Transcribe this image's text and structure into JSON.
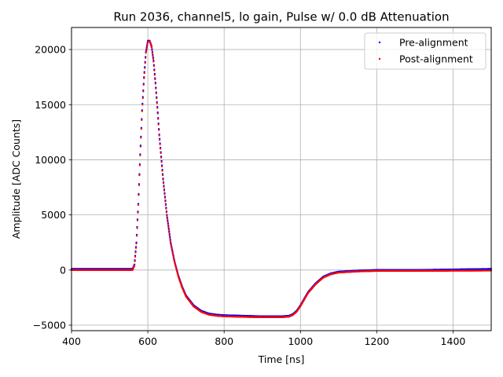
{
  "chart_data": {
    "type": "scatter",
    "title": "Run 2036, channel5, lo gain, Pulse w/ 0.0 dB Attenuation",
    "xlabel": "Time [ns]",
    "ylabel": "Amplitude [ADC Counts]",
    "xlim": [
      400,
      1500
    ],
    "ylim": [
      -5500,
      22000
    ],
    "grid": true,
    "legend_position": "top-right",
    "x_ticks": [
      400,
      600,
      800,
      1000,
      1200,
      1400
    ],
    "y_ticks": [
      -5000,
      0,
      5000,
      10000,
      15000,
      20000
    ],
    "x_tick_labels": [
      "400",
      "600",
      "800",
      "1000",
      "1200",
      "1400"
    ],
    "y_tick_labels": [
      "−5000",
      "0",
      "5000",
      "10000",
      "15000",
      "20000"
    ],
    "series": [
      {
        "name": "Pre-alignment",
        "color": "#0000ff",
        "x": [
          400,
          500,
          560,
          565,
          570,
          575,
          580,
          585,
          590,
          595,
          600,
          605,
          610,
          615,
          620,
          625,
          630,
          640,
          650,
          660,
          670,
          680,
          690,
          700,
          720,
          740,
          760,
          780,
          800,
          850,
          900,
          950,
          970,
          980,
          990,
          1000,
          1010,
          1020,
          1040,
          1060,
          1080,
          1100,
          1150,
          1200,
          1300,
          1400,
          1500
        ],
        "y": [
          100,
          100,
          100,
          500,
          2500,
          6000,
          10500,
          14500,
          17500,
          19800,
          20800,
          20800,
          20300,
          19000,
          17000,
          14800,
          12300,
          8300,
          5000,
          2500,
          800,
          -500,
          -1500,
          -2300,
          -3200,
          -3700,
          -3950,
          -4050,
          -4100,
          -4150,
          -4200,
          -4200,
          -4150,
          -4000,
          -3700,
          -3200,
          -2600,
          -2000,
          -1200,
          -600,
          -300,
          -150,
          -50,
          0,
          0,
          50,
          100
        ]
      },
      {
        "name": "Post-alignment",
        "color": "#ff0000",
        "x": [
          400,
          500,
          560,
          565,
          570,
          575,
          580,
          585,
          590,
          595,
          600,
          605,
          610,
          615,
          620,
          625,
          630,
          640,
          650,
          660,
          670,
          680,
          690,
          700,
          720,
          740,
          760,
          780,
          800,
          850,
          900,
          950,
          970,
          980,
          990,
          1000,
          1010,
          1020,
          1040,
          1060,
          1080,
          1100,
          1150,
          1200,
          1300,
          1400,
          1500
        ],
        "y": [
          0,
          0,
          0,
          400,
          2400,
          5900,
          10400,
          14400,
          17400,
          19700,
          20700,
          20750,
          20200,
          18900,
          16900,
          14700,
          12200,
          8200,
          4900,
          2400,
          700,
          -600,
          -1600,
          -2400,
          -3300,
          -3800,
          -4050,
          -4150,
          -4200,
          -4250,
          -4280,
          -4280,
          -4230,
          -4080,
          -3780,
          -3280,
          -2680,
          -2080,
          -1280,
          -680,
          -380,
          -230,
          -130,
          -80,
          -80,
          -60,
          -50
        ]
      }
    ]
  }
}
